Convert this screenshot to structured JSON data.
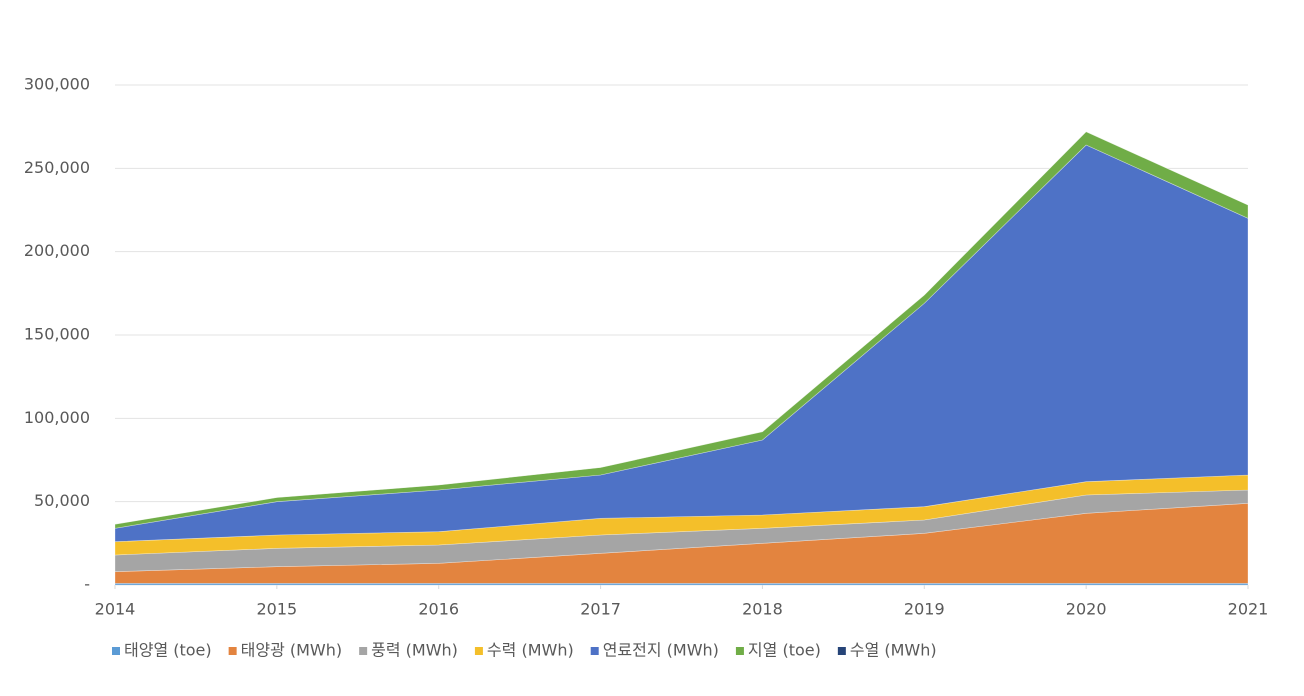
{
  "chart_data": {
    "type": "stacked-area",
    "x": [
      2014,
      2015,
      2016,
      2017,
      2018,
      2019,
      2020,
      2021
    ],
    "xlim": [
      2014,
      2021
    ],
    "xticks": [
      2014,
      2015,
      2016,
      2017,
      2018,
      2019,
      2020,
      2021
    ],
    "ylim": [
      0,
      300000
    ],
    "yticks": [
      {
        "value": 0,
        "label": "-"
      },
      {
        "value": 50000,
        "label": "50,000"
      },
      {
        "value": 100000,
        "label": "100,000"
      },
      {
        "value": 150000,
        "label": "150,000"
      },
      {
        "value": 200000,
        "label": "200,000"
      },
      {
        "value": 250000,
        "label": "250,000"
      },
      {
        "value": 300000,
        "label": "300,000"
      }
    ],
    "grid": true,
    "legend": "bottom",
    "series": [
      {
        "name": "태양열 (toe)",
        "color": "#5b9bd5",
        "values": [
          1000,
          1000,
          1000,
          1000,
          1000,
          1000,
          1000,
          1000
        ]
      },
      {
        "name": "태양광 (MWh)",
        "color": "#e3843f",
        "values": [
          7000,
          10000,
          12000,
          18000,
          24000,
          30000,
          42000,
          48000
        ]
      },
      {
        "name": "풍력 (MWh)",
        "color": "#a5a5a5",
        "values": [
          10000,
          11000,
          11000,
          11000,
          9000,
          8000,
          11000,
          8000
        ]
      },
      {
        "name": "수력 (MWh)",
        "color": "#f4bf2a",
        "values": [
          8000,
          8000,
          8000,
          10000,
          8000,
          8000,
          8000,
          9000
        ]
      },
      {
        "name": "연료전지 (MWh)",
        "color": "#4e72c6",
        "values": [
          8000,
          20000,
          25000,
          26000,
          45000,
          122000,
          202000,
          154000
        ]
      },
      {
        "name": "지열 (toe)",
        "color": "#70ad47",
        "values": [
          2500,
          2500,
          3000,
          4500,
          5000,
          5000,
          8000,
          8000
        ]
      },
      {
        "name": "수열 (MWh)",
        "color": "#264478",
        "values": [
          0,
          0,
          0,
          0,
          0,
          0,
          0,
          0
        ]
      }
    ]
  }
}
